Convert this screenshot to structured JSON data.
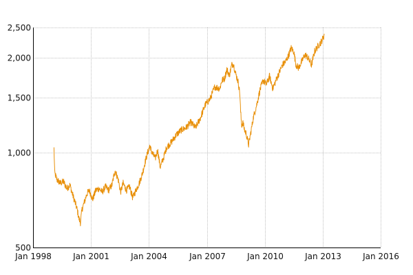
{
  "chart_data": {
    "type": "line",
    "title": "",
    "xlabel": "",
    "ylabel": "",
    "y_scale": "log",
    "grid": true,
    "legend": "none",
    "xlim": [
      "1998-01-01",
      "2016-01-01"
    ],
    "ylim": [
      500,
      2500
    ],
    "x_ticks": [
      {
        "date": "1998-01-01",
        "label": "Jan 1998"
      },
      {
        "date": "2001-01-01",
        "label": "Jan 2001"
      },
      {
        "date": "2004-01-01",
        "label": "Jan 2004"
      },
      {
        "date": "2007-01-01",
        "label": "Jan 2007"
      },
      {
        "date": "2010-01-01",
        "label": "Jan 2010"
      },
      {
        "date": "2013-01-01",
        "label": "Jan 2013"
      },
      {
        "date": "2016-01-01",
        "label": "Jan 2016"
      }
    ],
    "y_ticks": [
      {
        "value": 500,
        "label": "500"
      },
      {
        "value": 1000,
        "label": "1,000"
      },
      {
        "value": 1500,
        "label": "1,500"
      },
      {
        "value": 2000,
        "label": "2,000"
      },
      {
        "value": 2500,
        "label": "2,500"
      }
    ],
    "series": [
      {
        "color": "#e8900a",
        "points": [
          [
            "1999-02-01",
            1030
          ],
          [
            "1999-02-15",
            860
          ],
          [
            "1999-04-01",
            820
          ],
          [
            "1999-06-01",
            800
          ],
          [
            "1999-08-01",
            810
          ],
          [
            "1999-10-01",
            770
          ],
          [
            "1999-12-01",
            790
          ],
          [
            "2000-01-15",
            740
          ],
          [
            "2000-03-01",
            700
          ],
          [
            "2000-04-15",
            660
          ],
          [
            "2000-05-15",
            620
          ],
          [
            "2000-06-15",
            600
          ],
          [
            "2000-07-15",
            660
          ],
          [
            "2000-09-01",
            700
          ],
          [
            "2000-10-15",
            740
          ],
          [
            "2000-12-01",
            760
          ],
          [
            "2001-02-01",
            710
          ],
          [
            "2001-04-01",
            760
          ],
          [
            "2001-06-01",
            770
          ],
          [
            "2001-08-01",
            750
          ],
          [
            "2001-10-01",
            780
          ],
          [
            "2001-12-01",
            760
          ],
          [
            "2002-02-01",
            790
          ],
          [
            "2002-04-01",
            880
          ],
          [
            "2002-06-01",
            820
          ],
          [
            "2002-07-15",
            750
          ],
          [
            "2002-09-01",
            800
          ],
          [
            "2002-11-01",
            760
          ],
          [
            "2003-01-01",
            780
          ],
          [
            "2003-03-01",
            720
          ],
          [
            "2003-05-01",
            760
          ],
          [
            "2003-07-01",
            800
          ],
          [
            "2003-09-01",
            860
          ],
          [
            "2003-11-01",
            950
          ],
          [
            "2004-01-15",
            1050
          ],
          [
            "2004-03-01",
            1000
          ],
          [
            "2004-05-01",
            960
          ],
          [
            "2004-06-15",
            1020
          ],
          [
            "2004-08-01",
            900
          ],
          [
            "2004-10-01",
            960
          ],
          [
            "2004-12-01",
            1040
          ],
          [
            "2005-03-01",
            1080
          ],
          [
            "2005-06-01",
            1140
          ],
          [
            "2005-09-01",
            1180
          ],
          [
            "2005-12-01",
            1200
          ],
          [
            "2006-03-01",
            1250
          ],
          [
            "2006-06-01",
            1200
          ],
          [
            "2006-09-01",
            1290
          ],
          [
            "2006-12-01",
            1420
          ],
          [
            "2007-03-01",
            1480
          ],
          [
            "2007-06-01",
            1620
          ],
          [
            "2007-09-01",
            1600
          ],
          [
            "2007-10-15",
            1700
          ],
          [
            "2007-12-01",
            1720
          ],
          [
            "2008-01-15",
            1840
          ],
          [
            "2008-03-01",
            1760
          ],
          [
            "2008-04-15",
            1900
          ],
          [
            "2008-05-15",
            1920
          ],
          [
            "2008-07-01",
            1780
          ],
          [
            "2008-08-15",
            1680
          ],
          [
            "2008-09-15",
            1550
          ],
          [
            "2008-10-01",
            1350
          ],
          [
            "2008-10-20",
            1220
          ],
          [
            "2008-11-10",
            1250
          ],
          [
            "2008-12-15",
            1180
          ],
          [
            "2009-01-15",
            1150
          ],
          [
            "2009-03-01",
            1060
          ],
          [
            "2009-04-15",
            1170
          ],
          [
            "2009-06-01",
            1300
          ],
          [
            "2009-08-01",
            1420
          ],
          [
            "2009-10-01",
            1580
          ],
          [
            "2009-12-01",
            1700
          ],
          [
            "2010-02-01",
            1650
          ],
          [
            "2010-04-01",
            1750
          ],
          [
            "2010-06-01",
            1600
          ],
          [
            "2010-08-01",
            1700
          ],
          [
            "2010-10-01",
            1800
          ],
          [
            "2010-12-01",
            1900
          ],
          [
            "2011-02-01",
            1950
          ],
          [
            "2011-04-01",
            2050
          ],
          [
            "2011-05-15",
            2150
          ],
          [
            "2011-07-01",
            2100
          ],
          [
            "2011-08-15",
            1900
          ],
          [
            "2011-10-01",
            1860
          ],
          [
            "2011-12-01",
            1950
          ],
          [
            "2012-02-01",
            2050
          ],
          [
            "2012-04-01",
            2000
          ],
          [
            "2012-06-01",
            1900
          ],
          [
            "2012-08-01",
            2100
          ],
          [
            "2012-10-01",
            2180
          ],
          [
            "2012-12-01",
            2250
          ],
          [
            "2013-01-15",
            2330
          ],
          [
            "2013-02-01",
            2380
          ]
        ]
      }
    ]
  }
}
